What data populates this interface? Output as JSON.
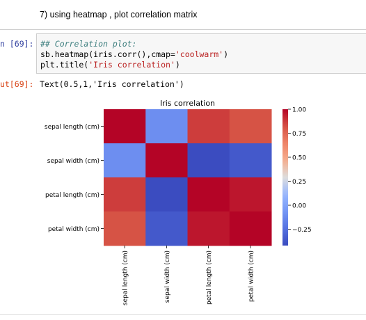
{
  "markdown": {
    "text": "7) using heatmap , plot correlation matrix"
  },
  "input_cell": {
    "prompt": "n [69]:",
    "code_comment": "## Correlation plot:",
    "code_line2_prefix": "sb.heatmap(iris.corr(),cmap=",
    "code_line2_string": "'coolwarm'",
    "code_line2_suffix": ")",
    "code_line3_prefix": "plt.title(",
    "code_line3_string": "'Iris correlation'",
    "code_line3_suffix": ")"
  },
  "output_cell": {
    "prompt": "ut[69]:",
    "text": "Text(0.5,1,'Iris correlation')"
  },
  "chart_data": {
    "type": "heatmap",
    "title": "Iris correlation",
    "rows": [
      "sepal length (cm)",
      "sepal width (cm)",
      "petal length (cm)",
      "petal width (cm)"
    ],
    "cols": [
      "sepal length (cm)",
      "sepal width (cm)",
      "petal length (cm)",
      "petal width (cm)"
    ],
    "values": [
      [
        1.0,
        -0.11,
        0.87,
        0.82
      ],
      [
        -0.11,
        1.0,
        -0.42,
        -0.36
      ],
      [
        0.87,
        -0.42,
        1.0,
        0.96
      ],
      [
        0.82,
        -0.36,
        0.96,
        1.0
      ]
    ],
    "colormap": "coolwarm",
    "vmin": -0.42,
    "vmax": 1.0,
    "colorbar_ticks": [
      "1.00",
      "0.75",
      "0.50",
      "0.25",
      "0.00",
      "−0.25"
    ],
    "colorbar_tick_values": [
      1.0,
      0.75,
      0.5,
      0.25,
      0.0,
      -0.25
    ]
  }
}
